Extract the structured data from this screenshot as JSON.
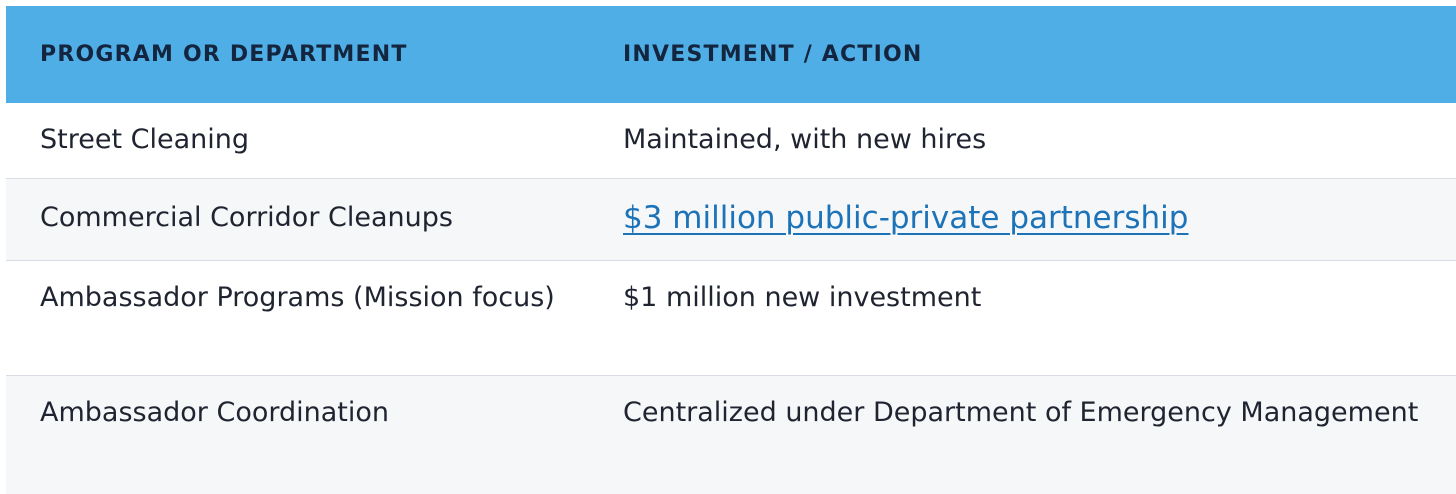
{
  "table": {
    "headers": [
      "PROGRAM OR DEPARTMENT",
      "INVESTMENT / ACTION"
    ],
    "rows": [
      {
        "program": "Street Cleaning",
        "action": "Maintained, with new hires",
        "action_is_link": false
      },
      {
        "program": "Commercial Corridor Cleanups",
        "action": "$3 million public-private partnership",
        "action_is_link": true
      },
      {
        "program": "Ambassador Programs (Mission focus)",
        "action": "$1 million new investment",
        "action_is_link": false
      },
      {
        "program": "Ambassador Coordination",
        "action": "Centralized under Department of Emergency Management",
        "action_is_link": false
      }
    ]
  },
  "colors": {
    "header_bg": "#4faee5",
    "header_text": "#14253f",
    "link": "#1d73b8",
    "row_alt": "#f6f7f9"
  }
}
